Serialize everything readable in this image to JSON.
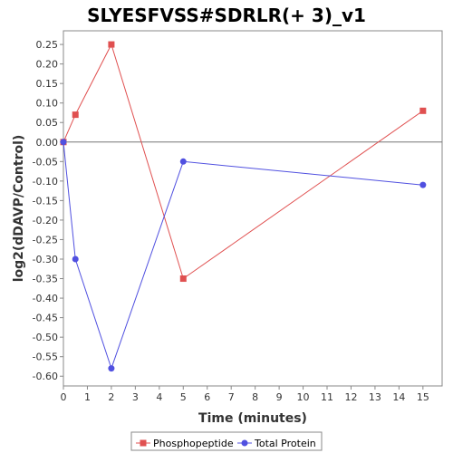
{
  "chart_data": {
    "type": "line",
    "title": "SLYESFVSS#SDRLR(+ 3)_v1",
    "xlabel": "Time (minutes)",
    "ylabel": "log2(dDAVP/Control)",
    "xlim": [
      0,
      15.8
    ],
    "ylim": [
      -0.625,
      0.285
    ],
    "xticks": [
      0,
      1,
      2,
      3,
      4,
      5,
      6,
      7,
      8,
      9,
      10,
      11,
      12,
      13,
      14,
      15
    ],
    "yticks": [
      0.25,
      0.2,
      0.15,
      0.1,
      0.05,
      0.0,
      -0.05,
      -0.1,
      -0.15,
      -0.2,
      -0.25,
      -0.3,
      -0.35,
      -0.4,
      -0.45,
      -0.5,
      -0.55,
      -0.6
    ],
    "zero_line": true,
    "grid": false,
    "legend_position": "bottom",
    "series": [
      {
        "name": "Phosphopeptide",
        "color": "#e05050",
        "marker": "square",
        "x": [
          0,
          0.5,
          2,
          5,
          15
        ],
        "y": [
          0.0,
          0.07,
          0.25,
          -0.35,
          0.08
        ]
      },
      {
        "name": "Total Protein",
        "color": "#5050e0",
        "marker": "circle",
        "x": [
          0,
          0.5,
          2,
          5,
          15
        ],
        "y": [
          0.0,
          -0.3,
          -0.58,
          -0.05,
          -0.11
        ]
      }
    ]
  }
}
